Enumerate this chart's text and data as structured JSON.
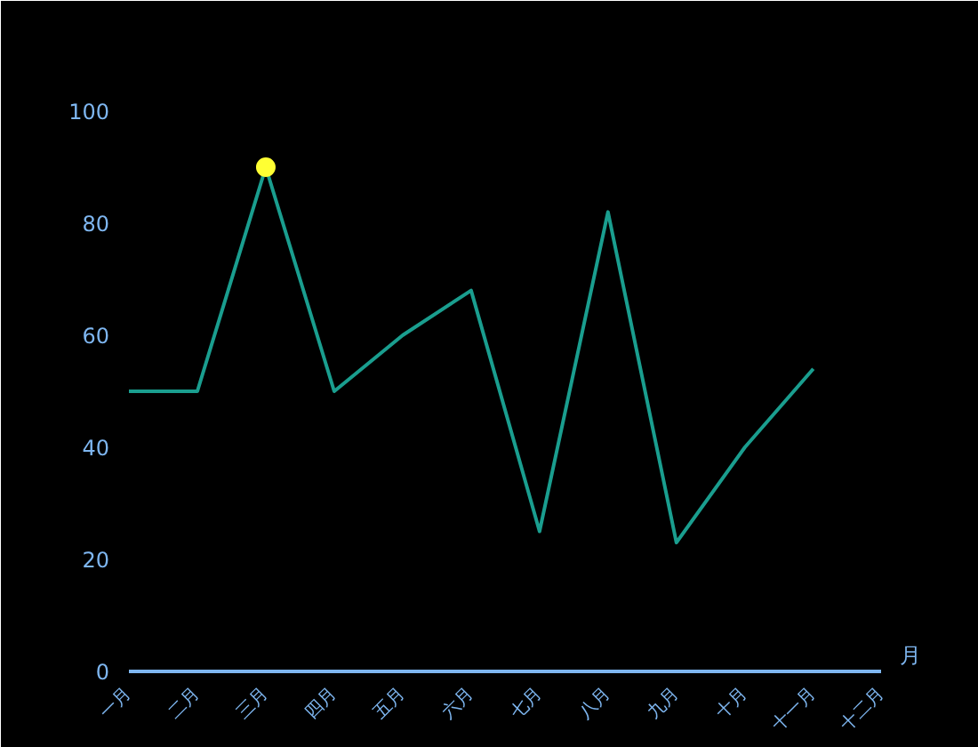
{
  "chart_data": {
    "type": "line",
    "xlabel": "月",
    "categories": [
      "一月",
      "二月",
      "三月",
      "四月",
      "五月",
      "六月",
      "七月",
      "八月",
      "九月",
      "十月",
      "十一月",
      "十二月"
    ],
    "ylim": [
      0,
      100
    ],
    "yticks": [
      0,
      20,
      40,
      60,
      80,
      100
    ],
    "grid": false,
    "series": [
      {
        "color": "#1a9e8f",
        "values": [
          50,
          50,
          90,
          50,
          60,
          68,
          25,
          82,
          23,
          40,
          54,
          null
        ]
      },
      {
        "type": "scatter",
        "marker": "circle",
        "color": "#ffff33",
        "x": [
          "三月"
        ],
        "values": [
          90
        ]
      }
    ]
  }
}
